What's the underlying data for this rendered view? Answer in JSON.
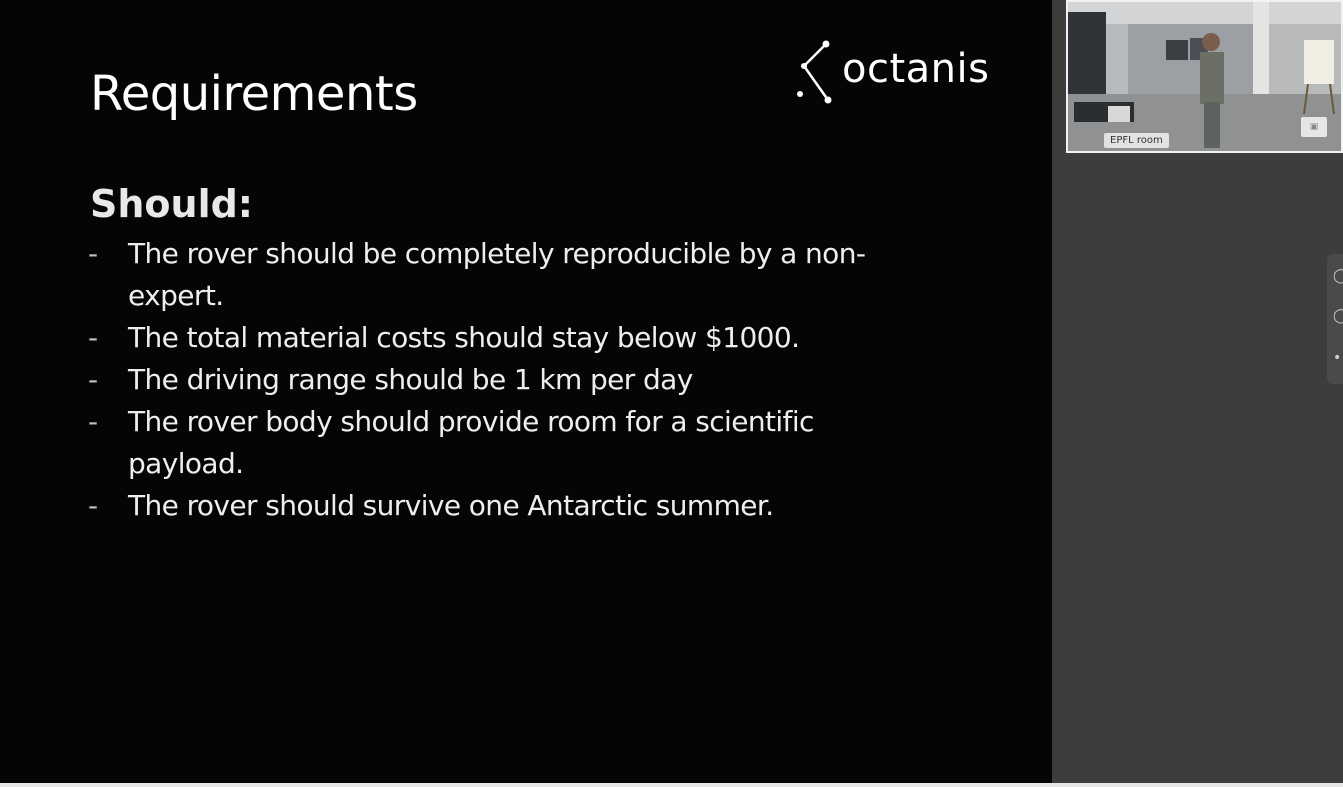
{
  "slide": {
    "title": "Requirements",
    "logo_text": "octanis",
    "section_heading": "Should:",
    "bullet_marker": "-",
    "items": [
      "The rover should be completely reproducible by a non-expert.",
      "The total material costs should stay below $1000.",
      "The driving range should be 1 km per day",
      "The rover body should provide room for a scientific payload.",
      "The rover should survive one Antarctic summer."
    ]
  },
  "video": {
    "room_label": "EPFL room"
  },
  "icons": {
    "logo": "constellation-logo-icon",
    "side_controls": [
      "chat-icon",
      "participants-icon",
      "more-icon"
    ]
  },
  "colors": {
    "slide_bg": "#050505",
    "panel_bg": "#3d3d3b",
    "text": "#eeeeee"
  }
}
